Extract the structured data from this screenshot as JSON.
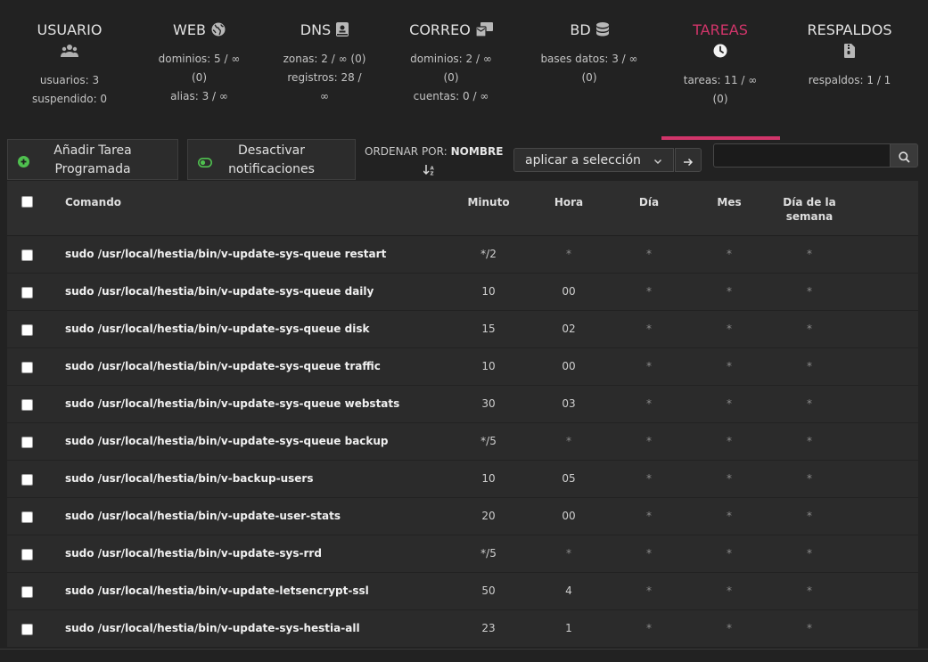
{
  "nav": {
    "user": {
      "title": "USUARIO",
      "icon": "users-icon",
      "stats": [
        "usuarios: 3",
        "suspendido: 0"
      ]
    },
    "web": {
      "title": "WEB",
      "icon": "globe-icon",
      "stats": [
        "dominios: 5 / ∞",
        "(0)",
        "alias: 3 / ∞"
      ]
    },
    "dns": {
      "title": "DNS",
      "icon": "book-icon",
      "stats": [
        "zonas: 2 / ∞ (0)",
        "registros: 28 /",
        "∞"
      ]
    },
    "mail": {
      "title": "CORREO",
      "icon": "mail-bulk-icon",
      "stats": [
        "dominios: 2 / ∞",
        "(0)",
        "cuentas: 0 / ∞"
      ]
    },
    "db": {
      "title": "BD",
      "icon": "database-icon",
      "stats": [
        "bases datos: 3 / ∞",
        "(0)"
      ]
    },
    "cron": {
      "title": "TAREAS",
      "icon": "clock-icon",
      "stats": [
        "tareas: 11 / ∞",
        "(0)"
      ]
    },
    "backup": {
      "title": "RESPALDOS",
      "icon": "file-archive-icon",
      "stats": [
        "respaldos: 1 / 1"
      ]
    }
  },
  "toolbar": {
    "add_line1": "Añadir Tarea",
    "add_line2": "Programada",
    "notify_line1": "Desactivar",
    "notify_line2": "notificaciones",
    "sort_label": "ORDENAR POR:",
    "sort_value": "NOMBRE",
    "bulk_select": "aplicar a selección",
    "search_value": ""
  },
  "table": {
    "headers": {
      "command": "Comando",
      "minute": "Minuto",
      "hour": "Hora",
      "day": "Día",
      "month": "Mes",
      "weekday_1": "Día de la",
      "weekday_2": "semana"
    },
    "rows": [
      {
        "command": "sudo /usr/local/hestia/bin/v-update-sys-queue restart",
        "minute": "*/2",
        "hour": "*",
        "day": "*",
        "month": "*",
        "weekday": "*"
      },
      {
        "command": "sudo /usr/local/hestia/bin/v-update-sys-queue daily",
        "minute": "10",
        "hour": "00",
        "day": "*",
        "month": "*",
        "weekday": "*"
      },
      {
        "command": "sudo /usr/local/hestia/bin/v-update-sys-queue disk",
        "minute": "15",
        "hour": "02",
        "day": "*",
        "month": "*",
        "weekday": "*"
      },
      {
        "command": "sudo /usr/local/hestia/bin/v-update-sys-queue traffic",
        "minute": "10",
        "hour": "00",
        "day": "*",
        "month": "*",
        "weekday": "*"
      },
      {
        "command": "sudo /usr/local/hestia/bin/v-update-sys-queue webstats",
        "minute": "30",
        "hour": "03",
        "day": "*",
        "month": "*",
        "weekday": "*"
      },
      {
        "command": "sudo /usr/local/hestia/bin/v-update-sys-queue backup",
        "minute": "*/5",
        "hour": "*",
        "day": "*",
        "month": "*",
        "weekday": "*"
      },
      {
        "command": "sudo /usr/local/hestia/bin/v-backup-users",
        "minute": "10",
        "hour": "05",
        "day": "*",
        "month": "*",
        "weekday": "*"
      },
      {
        "command": "sudo /usr/local/hestia/bin/v-update-user-stats",
        "minute": "20",
        "hour": "00",
        "day": "*",
        "month": "*",
        "weekday": "*"
      },
      {
        "command": "sudo /usr/local/hestia/bin/v-update-sys-rrd",
        "minute": "*/5",
        "hour": "*",
        "day": "*",
        "month": "*",
        "weekday": "*"
      },
      {
        "command": "sudo /usr/local/hestia/bin/v-update-letsencrypt-ssl",
        "minute": "50",
        "hour": "4",
        "day": "*",
        "month": "*",
        "weekday": "*"
      },
      {
        "command": "sudo /usr/local/hestia/bin/v-update-sys-hestia-all",
        "minute": "23",
        "hour": "1",
        "day": "*",
        "month": "*",
        "weekday": "*"
      }
    ]
  },
  "colors": {
    "accent": "#d1356a",
    "background": "#222222",
    "green": "#4fc04f"
  }
}
